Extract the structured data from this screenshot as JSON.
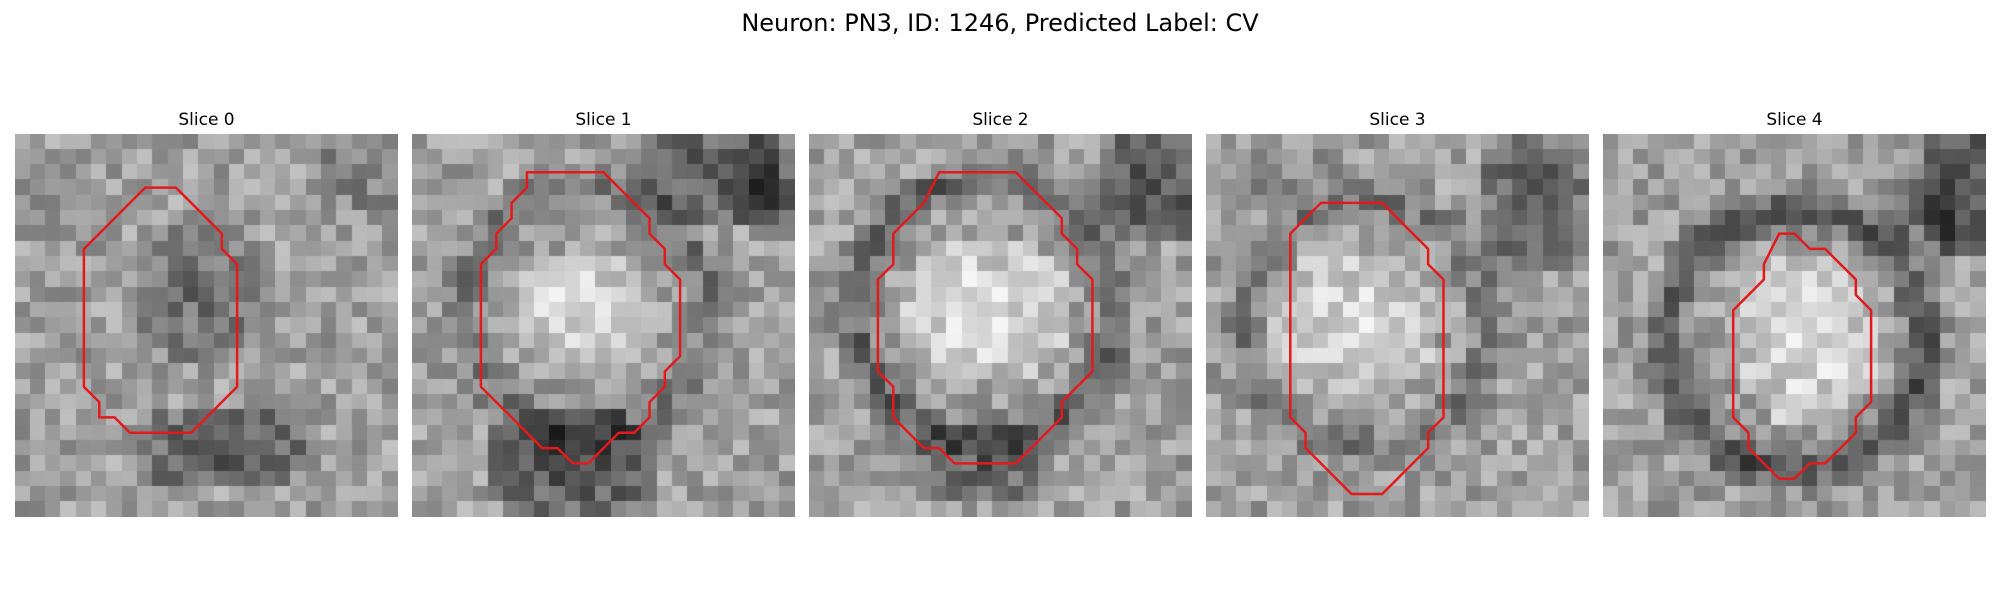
{
  "figure": {
    "title": "Neuron: PN3, ID: 1246, Predicted Label: CV"
  },
  "image_style": {
    "colormap": "grayscale",
    "contour_color": "#e31a1c"
  },
  "panels": [
    {
      "title": "Slice 0",
      "contour_grid": [
        [
          8,
          3
        ],
        [
          10,
          3
        ],
        [
          11,
          4
        ],
        [
          12,
          5
        ],
        [
          13,
          6
        ],
        [
          13,
          7
        ],
        [
          14,
          8
        ],
        [
          14,
          16
        ],
        [
          13,
          17
        ],
        [
          12,
          18
        ],
        [
          11,
          19
        ],
        [
          7,
          19
        ],
        [
          6,
          18
        ],
        [
          5,
          18
        ],
        [
          5,
          17
        ],
        [
          4,
          16
        ],
        [
          4,
          7
        ],
        [
          5,
          6
        ],
        [
          6,
          5
        ],
        [
          7,
          4
        ]
      ]
    },
    {
      "title": "Slice 1",
      "contour_grid": [
        [
          7,
          2
        ],
        [
          12,
          2
        ],
        [
          13,
          3
        ],
        [
          14,
          4
        ],
        [
          15,
          5
        ],
        [
          15,
          6
        ],
        [
          16,
          7
        ],
        [
          16,
          8
        ],
        [
          17,
          9
        ],
        [
          17,
          14
        ],
        [
          16,
          15
        ],
        [
          16,
          16
        ],
        [
          15,
          17
        ],
        [
          15,
          18
        ],
        [
          14,
          19
        ],
        [
          13,
          19
        ],
        [
          12,
          20
        ],
        [
          11,
          21
        ],
        [
          10,
          21
        ],
        [
          9,
          20
        ],
        [
          8,
          20
        ],
        [
          7,
          19
        ],
        [
          6,
          18
        ],
        [
          5,
          17
        ],
        [
          4,
          16
        ],
        [
          4,
          8
        ],
        [
          5,
          7
        ],
        [
          5,
          6
        ],
        [
          6,
          5
        ],
        [
          6,
          4
        ],
        [
          7,
          3
        ]
      ]
    },
    {
      "title": "Slice 2",
      "contour_grid": [
        [
          8,
          2
        ],
        [
          13,
          2
        ],
        [
          14,
          3
        ],
        [
          15,
          4
        ],
        [
          16,
          5
        ],
        [
          16,
          6
        ],
        [
          17,
          7
        ],
        [
          17,
          8
        ],
        [
          18,
          9
        ],
        [
          18,
          15
        ],
        [
          17,
          16
        ],
        [
          16,
          17
        ],
        [
          16,
          18
        ],
        [
          15,
          19
        ],
        [
          14,
          20
        ],
        [
          13,
          21
        ],
        [
          9,
          21
        ],
        [
          8,
          20
        ],
        [
          7,
          20
        ],
        [
          6,
          19
        ],
        [
          5,
          18
        ],
        [
          5,
          16
        ],
        [
          4,
          15
        ],
        [
          4,
          9
        ],
        [
          5,
          8
        ],
        [
          5,
          6
        ],
        [
          6,
          5
        ],
        [
          7,
          4
        ]
      ]
    },
    {
      "title": "Slice 3",
      "contour_grid": [
        [
          8,
          4
        ],
        [
          11,
          4
        ],
        [
          12,
          5
        ],
        [
          13,
          6
        ],
        [
          14,
          7
        ],
        [
          14,
          8
        ],
        [
          15,
          9
        ],
        [
          15,
          18
        ],
        [
          14,
          19
        ],
        [
          14,
          20
        ],
        [
          13,
          21
        ],
        [
          12,
          22
        ],
        [
          11,
          23
        ],
        [
          9,
          23
        ],
        [
          8,
          22
        ],
        [
          7,
          21
        ],
        [
          6,
          20
        ],
        [
          6,
          19
        ],
        [
          5,
          18
        ],
        [
          5,
          6
        ],
        [
          6,
          5
        ],
        [
          7,
          4
        ]
      ]
    },
    {
      "title": "Slice 4",
      "contour_grid": [
        [
          11,
          6
        ],
        [
          12,
          6
        ],
        [
          13,
          7
        ],
        [
          14,
          7
        ],
        [
          15,
          8
        ],
        [
          16,
          9
        ],
        [
          16,
          10
        ],
        [
          17,
          11
        ],
        [
          17,
          17
        ],
        [
          16,
          18
        ],
        [
          16,
          19
        ],
        [
          15,
          20
        ],
        [
          14,
          21
        ],
        [
          13,
          21
        ],
        [
          12,
          22
        ],
        [
          11,
          22
        ],
        [
          10,
          21
        ],
        [
          9,
          20
        ],
        [
          9,
          19
        ],
        [
          8,
          18
        ],
        [
          8,
          11
        ],
        [
          9,
          10
        ],
        [
          10,
          9
        ],
        [
          10,
          8
        ]
      ]
    }
  ]
}
